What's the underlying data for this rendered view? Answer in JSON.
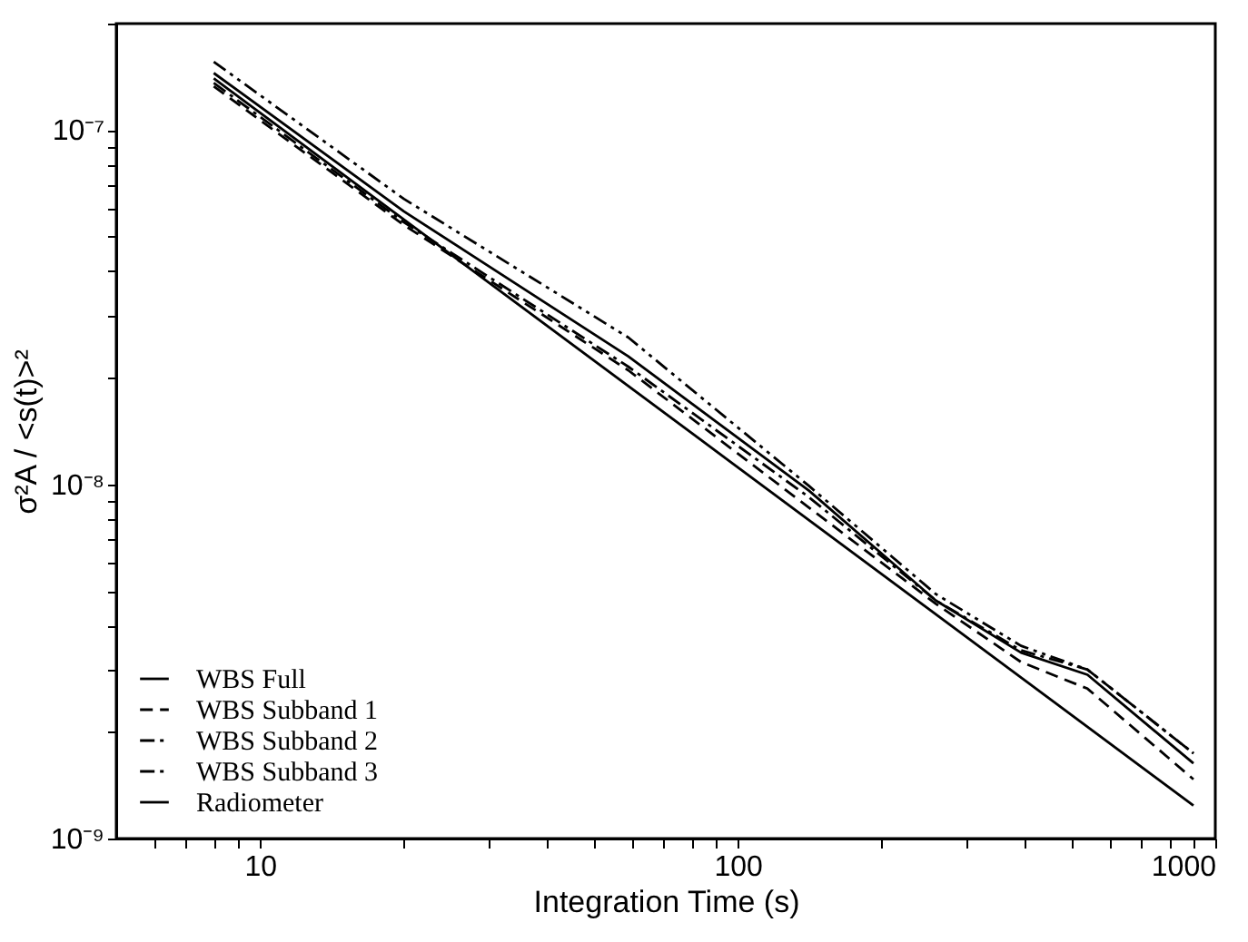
{
  "chart_data": {
    "type": "line",
    "xlabel": "Integration Time (s)",
    "ylabel": "σ²A / <s(t)>²",
    "log": "xy",
    "xlim": [
      5,
      1000
    ],
    "ylim": [
      1e-09,
      2e-07
    ],
    "xticks": [
      {
        "value": 6,
        "label": null
      },
      {
        "value": 7,
        "label": null
      },
      {
        "value": 8,
        "label": null
      },
      {
        "value": 9,
        "label": null
      },
      10,
      {
        "value": 20,
        "label": null
      },
      {
        "value": 30,
        "label": null
      },
      {
        "value": 40,
        "label": null
      },
      {
        "value": 50,
        "label": null
      },
      {
        "value": 60,
        "label": null
      },
      {
        "value": 70,
        "label": null
      },
      {
        "value": 80,
        "label": null
      },
      {
        "value": 90,
        "label": null
      },
      100,
      {
        "value": 200,
        "label": null
      },
      {
        "value": 300,
        "label": null
      },
      {
        "value": 400,
        "label": null
      },
      {
        "value": 500,
        "label": null
      },
      {
        "value": 600,
        "label": null
      },
      {
        "value": 700,
        "label": null
      },
      {
        "value": 800,
        "label": null
      },
      {
        "value": 900,
        "label": null
      },
      1000
    ],
    "yticks": [
      {
        "value": 1e-09,
        "label": "10⁻⁹"
      },
      {
        "value": 2e-09,
        "label": null
      },
      {
        "value": 3e-09,
        "label": null
      },
      {
        "value": 4e-09,
        "label": null
      },
      {
        "value": 5e-09,
        "label": null
      },
      {
        "value": 6e-09,
        "label": null
      },
      {
        "value": 7e-09,
        "label": null
      },
      {
        "value": 8e-09,
        "label": null
      },
      {
        "value": 9e-09,
        "label": null
      },
      {
        "value": 1e-08,
        "label": "10⁻⁸"
      },
      {
        "value": 2e-08,
        "label": null
      },
      {
        "value": 3e-08,
        "label": null
      },
      {
        "value": 4e-08,
        "label": null
      },
      {
        "value": 5e-08,
        "label": null
      },
      {
        "value": 6e-08,
        "label": null
      },
      {
        "value": 7e-08,
        "label": null
      },
      {
        "value": 8e-08,
        "label": null
      },
      {
        "value": 9e-08,
        "label": null
      },
      {
        "value": 1e-07,
        "label": "10⁻⁷"
      },
      {
        "value": 2e-07,
        "label": null
      }
    ],
    "grid": false,
    "legend": "bottom left",
    "marker": "none",
    "series": [
      {
        "name": "WBS Full",
        "color": "#000000",
        "line_style": "solid",
        "x": [
          8,
          20,
          59,
          141,
          260,
          392,
          540,
          900
        ],
        "values": [
          1.45e-07,
          5.9e-08,
          2.3e-08,
          9.6e-09,
          4.7e-09,
          3.35e-09,
          2.9e-09,
          1.63e-09
        ]
      },
      {
        "name": "WBS Subband 1",
        "color": "#000000",
        "line_style": "dashed",
        "x": [
          8,
          20,
          59,
          141,
          260,
          392,
          540,
          900
        ],
        "values": [
          1.33e-07,
          5.4e-08,
          2.1e-08,
          8.6e-09,
          4.6e-09,
          3.15e-09,
          2.65e-09,
          1.47e-09
        ]
      },
      {
        "name": "WBS Subband 2",
        "color": "#000000",
        "line_style": "dashdot",
        "x": [
          8,
          20,
          59,
          141,
          260,
          392,
          540,
          900
        ],
        "values": [
          1.36e-07,
          5.5e-08,
          2.15e-08,
          9.2e-09,
          4.7e-09,
          3.4e-09,
          3e-09,
          1.74e-09
        ]
      },
      {
        "name": "WBS Subband 3",
        "color": "#000000",
        "line_style": "dashdotdot",
        "x": [
          8,
          20,
          59,
          141,
          260,
          392,
          540,
          900
        ],
        "values": [
          1.56e-07,
          6.4e-08,
          2.6e-08,
          9.9e-09,
          4.9e-09,
          3.5e-09,
          3e-09,
          1.74e-09
        ]
      },
      {
        "name": "Radiometer",
        "color": "#000000",
        "line_style": "solid",
        "x": [
          8,
          900
        ],
        "values": [
          1.4e-07,
          1.24e-09
        ]
      }
    ]
  }
}
